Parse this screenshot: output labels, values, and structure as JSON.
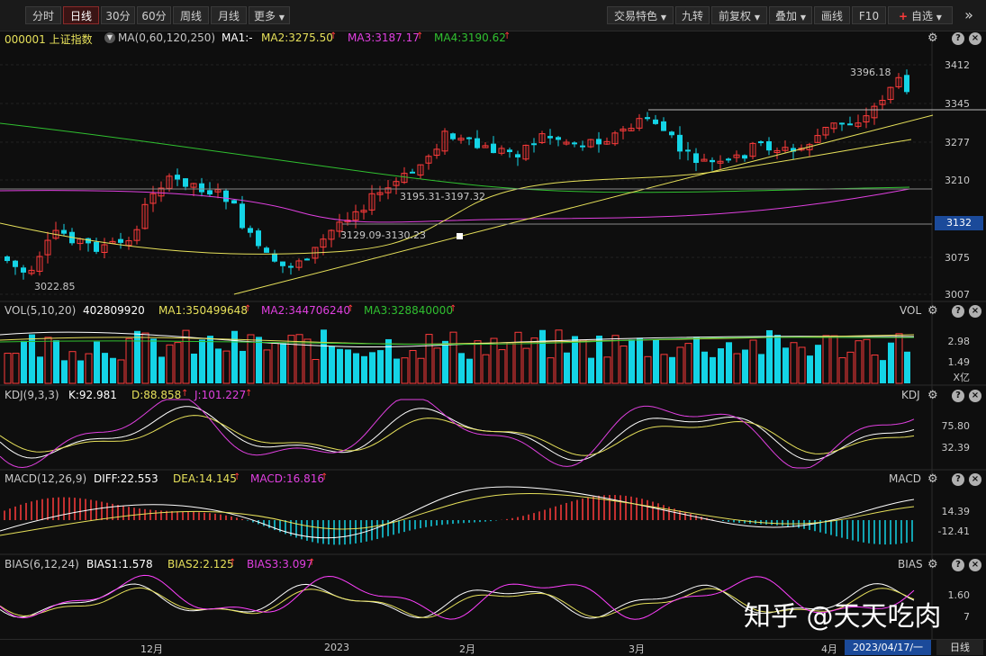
{
  "toolbar": {
    "periods": [
      "分时",
      "日线",
      "30分",
      "60分",
      "周线",
      "月线",
      "更多"
    ],
    "active_period": "日线",
    "right": [
      "交易特色",
      "九转",
      "前复权",
      "叠加",
      "画线",
      "F10"
    ],
    "watchlist_plus": "+",
    "watchlist_label": "自选",
    "more_icon": "double-chevron-right-icon"
  },
  "main": {
    "code_name": "000001 上证指数",
    "ma_setting": "MA(0,60,120,250)",
    "ma1": "MA1:-",
    "ma2": "MA2:3275.50",
    "ma3": "MA3:3187.17",
    "ma4": "MA4:3190.62",
    "axis": [
      "3412",
      "3345",
      "3277",
      "3210",
      "3132",
      "3075",
      "3007"
    ],
    "high_label": "3396.18",
    "low_label": "3022.85",
    "ann1": "3195.31-3197.32",
    "ann2": "3129.09-3130.23",
    "colors": {
      "up": "#ff3b3b",
      "down": "#14d4e6",
      "ma2": "#e6e05a",
      "ma3": "#e040e0",
      "ma4": "#30c030"
    }
  },
  "vol": {
    "title": "VOL(5,10,20)",
    "value": "402809920",
    "ma1": "MA1:350499648",
    "ma2": "MA2:344706240",
    "ma3": "MA3:328840000",
    "label": "VOL",
    "axis": [
      "2.98",
      "1.49"
    ],
    "unit": "X亿"
  },
  "kdj": {
    "title": "KDJ(9,3,3)",
    "k": "K:92.981",
    "d": "D:88.858",
    "j": "J:101.227",
    "label": "KDJ",
    "axis": [
      "75.80",
      "32.39"
    ]
  },
  "macd": {
    "title": "MACD(12,26,9)",
    "diff": "DIFF:22.553",
    "dea": "DEA:14.145",
    "macd": "MACD:16.816",
    "label": "MACD",
    "axis": [
      "14.39",
      "-12.41"
    ]
  },
  "bias": {
    "title": "BIAS(6,12,24)",
    "b1": "BIAS1:1.578",
    "b2": "BIAS2:2.125",
    "b3": "BIAS3:3.097",
    "label": "BIAS",
    "axis": [
      "1.60",
      "7"
    ]
  },
  "xaxis": {
    "months": [
      "12月",
      "2023",
      "2月",
      "3月",
      "4月"
    ],
    "cursor_date": "2023/04/17/一",
    "period": "日线"
  },
  "watermark": "知乎 @天天吃肉"
}
